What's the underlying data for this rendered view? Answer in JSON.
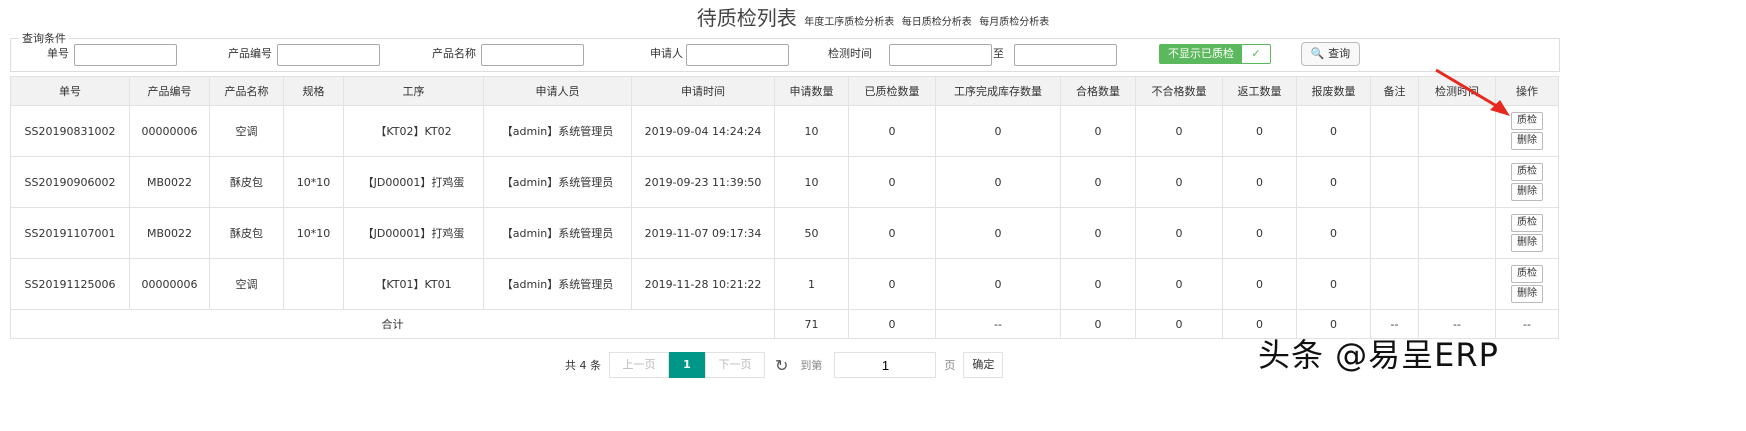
{
  "title": "待质检列表",
  "links": [
    "年度工序质检分析表",
    "每日质检分析表",
    "每月质检分析表"
  ],
  "query": {
    "legend": "查询条件",
    "fields": [
      "单号",
      "产品编号",
      "产品名称",
      "申请人",
      "检测时间"
    ],
    "to": "至",
    "toggle": "不显示已质检",
    "toggle_check": "✓",
    "search": "查询"
  },
  "columns": [
    "单号",
    "产品编号",
    "产品名称",
    "规格",
    "工序",
    "申请人员",
    "申请时间",
    "申请数量",
    "已质检数量",
    "工序完成库存数量",
    "合格数量",
    "不合格数量",
    "返工数量",
    "报废数量",
    "备注",
    "检测时间",
    "操作"
  ],
  "rows": [
    [
      "SS20190831002",
      "00000006",
      "空调",
      "",
      "【KT02】KT02",
      "【admin】系统管理员",
      "2019-09-04 14:24:24",
      "10",
      "0",
      "0",
      "0",
      "0",
      "0",
      "0",
      "",
      ""
    ],
    [
      "SS20190906002",
      "MB0022",
      "酥皮包",
      "10*10",
      "【JD00001】打鸡蛋",
      "【admin】系统管理员",
      "2019-09-23 11:39:50",
      "10",
      "0",
      "0",
      "0",
      "0",
      "0",
      "0",
      "",
      ""
    ],
    [
      "SS20191107001",
      "MB0022",
      "酥皮包",
      "10*10",
      "【JD00001】打鸡蛋",
      "【admin】系统管理员",
      "2019-11-07 09:17:34",
      "50",
      "0",
      "0",
      "0",
      "0",
      "0",
      "0",
      "",
      ""
    ],
    [
      "SS20191125006",
      "00000006",
      "空调",
      "",
      "【KT01】KT01",
      "【admin】系统管理员",
      "2019-11-28 10:21:22",
      "1",
      "0",
      "0",
      "0",
      "0",
      "0",
      "0",
      "",
      ""
    ]
  ],
  "actions": {
    "inspect": "质检",
    "delete": "删除"
  },
  "total": {
    "label": "合计",
    "values": [
      "71",
      "0",
      "--",
      "0",
      "0",
      "0",
      "0",
      "--",
      "--",
      "--"
    ]
  },
  "pager": {
    "count": "共 4 条",
    "prev": "上一页",
    "page": "1",
    "next": "下一页",
    "goto": "到第",
    "goto_value": "1",
    "page_unit": "页",
    "confirm": "确定"
  },
  "watermark": "头条 @易呈ERP",
  "colors": {
    "accent": "#009688",
    "toggle": "#5cb85c",
    "arrow": "#e8281e"
  }
}
